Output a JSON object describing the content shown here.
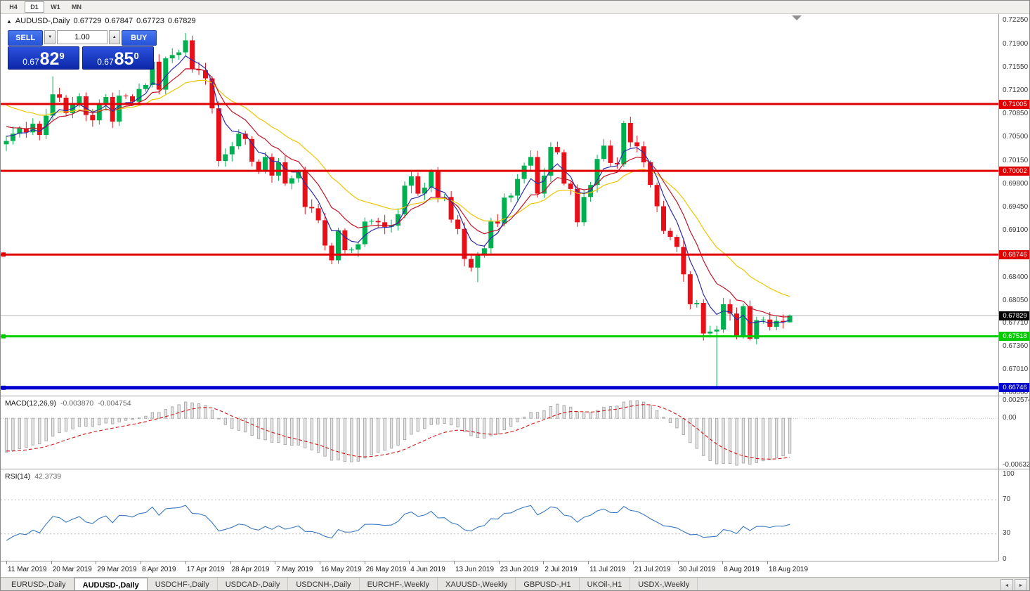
{
  "toolbar": {
    "buttons": [
      {
        "label": "H4",
        "active": false
      },
      {
        "label": "D1",
        "active": true
      },
      {
        "label": "W1",
        "active": false
      },
      {
        "label": "MN",
        "active": false
      }
    ]
  },
  "chart_header": {
    "marker": "▲",
    "title": "AUDUSD-,Daily",
    "open": "0.67729",
    "high": "0.67847",
    "low": "0.67723",
    "close": "0.67829"
  },
  "trade_panel": {
    "sell_label": "SELL",
    "buy_label": "BUY",
    "volume": "1.00",
    "spin_down_icon": "▼",
    "spin_up_icon": "▲",
    "sell_price": {
      "prefix": "0.67",
      "big": "82",
      "sup": "9"
    },
    "buy_price": {
      "prefix": "0.67",
      "big": "85",
      "sup": "0"
    }
  },
  "price_axis": {
    "labels": [
      "0.72250",
      "0.71900",
      "0.71550",
      "0.71200",
      "0.70850",
      "0.70500",
      "0.70150",
      "0.69800",
      "0.69450",
      "0.69100",
      "0.68400",
      "0.68050",
      "0.67710",
      "0.67360",
      "0.67010",
      "0.66660"
    ],
    "current_price": "0.67829",
    "current_price_bg": "#000000"
  },
  "levels": [
    {
      "price": 0.71005,
      "label": "0.71005",
      "color": "#e00000",
      "thickness": 3,
      "handle": false
    },
    {
      "price": 0.70002,
      "label": "0.70002",
      "color": "#e00000",
      "thickness": 3,
      "handle": false
    },
    {
      "price": 0.68746,
      "label": "0.68746",
      "color": "#e00000",
      "thickness": 3,
      "handle": true
    },
    {
      "price": 0.67518,
      "label": "0.67518",
      "color": "#00cc00",
      "thickness": 3,
      "handle": true
    },
    {
      "price": 0.66746,
      "label": "0.66746",
      "color": "#0000d0",
      "thickness": 5,
      "handle": true
    }
  ],
  "indicators": {
    "macd": {
      "name": "MACD(12,26,9)",
      "value_main": "-0.003870",
      "value_signal": "-0.004754",
      "axis_max": "0.002574",
      "axis_zero": "0.00",
      "axis_min": "-0.006326"
    },
    "rsi": {
      "name": "RSI(14)",
      "value": "42.3739",
      "axis": [
        "100",
        "70",
        "30",
        "0"
      ],
      "level_lines": [
        70,
        30
      ]
    }
  },
  "time_axis": {
    "labels": [
      "11 Mar 2019",
      "20 Mar 2019",
      "29 Mar 2019",
      "8 Apr 2019",
      "17 Apr 2019",
      "28 Apr 2019",
      "7 May 2019",
      "16 May 2019",
      "26 May 2019",
      "4 Jun 2019",
      "13 Jun 2019",
      "23 Jun 2019",
      "2 Jul 2019",
      "11 Jul 2019",
      "21 Jul 2019",
      "30 Jul 2019",
      "8 Aug 2019",
      "18 Aug 2019"
    ]
  },
  "tabs": {
    "items": [
      {
        "label": "EURUSD-,Daily",
        "active": false
      },
      {
        "label": "AUDUSD-,Daily",
        "active": true
      },
      {
        "label": "USDCHF-,Daily",
        "active": false
      },
      {
        "label": "USDCAD-,Daily",
        "active": false
      },
      {
        "label": "USDCNH-,Daily",
        "active": false
      },
      {
        "label": "EURCHF-,Weekly",
        "active": false
      },
      {
        "label": "XAUUSD-,Weekly",
        "active": false
      },
      {
        "label": "GBPUSD-,H1",
        "active": false
      },
      {
        "label": "UKOil-,H1",
        "active": false
      },
      {
        "label": "USDX-,Weekly",
        "active": false
      }
    ],
    "scroll_left_icon": "◄",
    "scroll_right_icon": "►"
  },
  "chart_data": {
    "type": "candlestick",
    "symbol": "AUDUSD-",
    "timeframe": "Daily",
    "price_range": [
      0.6667,
      0.7226
    ],
    "candle_up_color": "#00b050",
    "candle_down_color": "#e81018",
    "current_line_color": "#b4b4b4",
    "warmup_closes": [
      0.7248,
      0.7235,
      0.7221,
      0.7234,
      0.7215,
      0.7198,
      0.7185,
      0.7165,
      0.715,
      0.7135,
      0.7149,
      0.7128,
      0.7107,
      0.709,
      0.7102,
      0.7086,
      0.7094,
      0.7078,
      0.7088,
      0.7073,
      0.7061,
      0.7068,
      0.7052,
      0.7056,
      0.704
    ],
    "closes": [
      0.7045,
      0.7056,
      0.7064,
      0.7058,
      0.7071,
      0.7054,
      0.7083,
      0.7115,
      0.711,
      0.7087,
      0.71,
      0.7112,
      0.7084,
      0.7076,
      0.7099,
      0.7111,
      0.7074,
      0.7113,
      0.7112,
      0.7104,
      0.7123,
      0.7129,
      0.7164,
      0.7122,
      0.7169,
      0.7174,
      0.7178,
      0.7196,
      0.7153,
      0.7151,
      0.7139,
      0.7094,
      0.7015,
      0.7025,
      0.7037,
      0.7056,
      0.7048,
      0.7014,
      0.7001,
      0.7021,
      0.6993,
      0.7013,
      0.6981,
      0.6989,
      0.6999,
      0.6946,
      0.6944,
      0.6926,
      0.6888,
      0.6866,
      0.6911,
      0.6881,
      0.6882,
      0.689,
      0.6924,
      0.6925,
      0.6923,
      0.6916,
      0.6918,
      0.6935,
      0.6978,
      0.6992,
      0.6966,
      0.6975,
      0.6999,
      0.696,
      0.6961,
      0.6927,
      0.6913,
      0.6868,
      0.6855,
      0.6875,
      0.6884,
      0.6924,
      0.6921,
      0.696,
      0.6963,
      0.6988,
      0.7008,
      0.7021,
      0.6966,
      0.6993,
      0.7036,
      0.7028,
      0.6981,
      0.6973,
      0.6923,
      0.6961,
      0.6979,
      0.7018,
      0.7038,
      0.7012,
      0.701,
      0.7072,
      0.7043,
      0.7037,
      0.7013,
      0.6979,
      0.6947,
      0.691,
      0.6901,
      0.6886,
      0.6845,
      0.68,
      0.6802,
      0.6756,
      0.6759,
      0.6762,
      0.68,
      0.6786,
      0.6753,
      0.6797,
      0.6748,
      0.6776,
      0.6777,
      0.6766,
      0.6775,
      0.6773,
      0.67829
    ],
    "overrides": {
      "7": {
        "h": 0.7142
      },
      "27": {
        "h": 0.7207
      },
      "71": {
        "l": 0.6833
      },
      "94": {
        "h": 0.70815
      },
      "107": {
        "l": 0.6677
      },
      "118": {
        "o": 0.67729,
        "h": 0.67847,
        "l": 0.67723,
        "c": 0.67829
      }
    },
    "moving_averages": [
      {
        "period": 20,
        "color": "#ecc500"
      },
      {
        "period": 10,
        "color": "#c01528"
      },
      {
        "period": 5,
        "color": "#2c2ca8"
      }
    ],
    "macd": {
      "fast": 12,
      "slow": 26,
      "signal": 9,
      "histogram_fill": "#e4e4e4",
      "histogram_stroke": "#a0a0a0",
      "signal_color": "#d01818"
    },
    "rsi": {
      "period": 14,
      "color": "#3878c0"
    }
  }
}
